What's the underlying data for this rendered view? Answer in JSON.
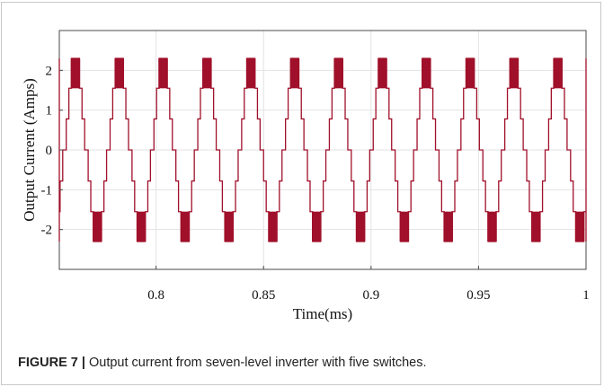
{
  "chart_data": {
    "type": "line",
    "title": "",
    "xlabel": "Time(ms)",
    "ylabel": "Output Current (Amps)",
    "xlim": [
      0.755,
      1.0
    ],
    "ylim": [
      -3,
      3
    ],
    "x_ticks": [
      "0.8",
      "0.85",
      "0.9",
      "0.95",
      "1"
    ],
    "x_tick_values": [
      0.8,
      0.85,
      0.9,
      0.95,
      1.0
    ],
    "y_ticks": [
      "2",
      "1",
      "0",
      "-1",
      "-2"
    ],
    "y_tick_values": [
      2,
      1,
      0,
      -1,
      -2
    ],
    "grid": true,
    "line_color": "#a0102a",
    "series": [
      {
        "waveform": "seven-level stepped",
        "levels": [
          -2.3,
          -1.55,
          -0.78,
          0,
          0.78,
          1.55,
          2.3
        ],
        "period": 0.0204,
        "first_positive_peak_center": 0.7625
      }
    ]
  },
  "caption": {
    "label": "FIGURE 7 |",
    "text": " Output current from seven-level inverter with five switches."
  }
}
